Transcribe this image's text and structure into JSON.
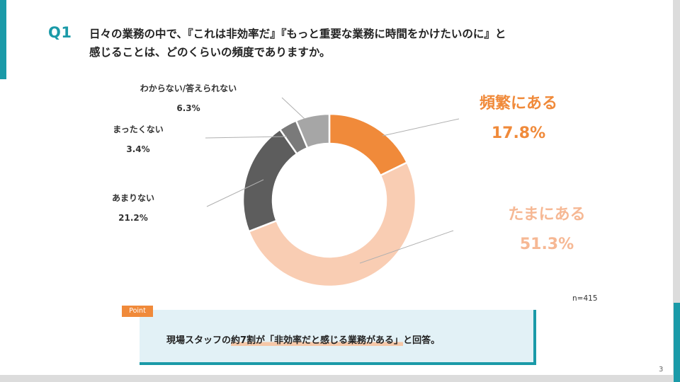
{
  "question": {
    "label": "Q1",
    "title_line1": "日々の業務の中で、『これは非効率だ』『もっと重要な業務に時間をかけたいのに』と",
    "title_line2": "感じることは、どのくらいの頻度でありますか。"
  },
  "chart_data": {
    "type": "pie",
    "variant": "donut",
    "categories": [
      "頻繁にある",
      "たまにある",
      "あまりない",
      "まったくない",
      "わからない/答えられない"
    ],
    "values": [
      17.8,
      51.3,
      21.2,
      3.4,
      6.3
    ],
    "value_labels": [
      "17.8%",
      "51.3%",
      "21.2%",
      "3.4%",
      "6.3%"
    ],
    "colors": [
      "#f08a3a",
      "#f9cdb3",
      "#5d5d5d",
      "#7a7a7a",
      "#a6a6a6"
    ],
    "n_label": "n=415"
  },
  "point": {
    "tag": "Point",
    "text_before": "現場スタッフの",
    "text_highlight": "約7割が「非効率だと感じる業務がある」",
    "text_after": "と回答。"
  },
  "page_number": "3",
  "colors": {
    "accent": "#1a9aa8",
    "orange": "#f08a3a"
  }
}
